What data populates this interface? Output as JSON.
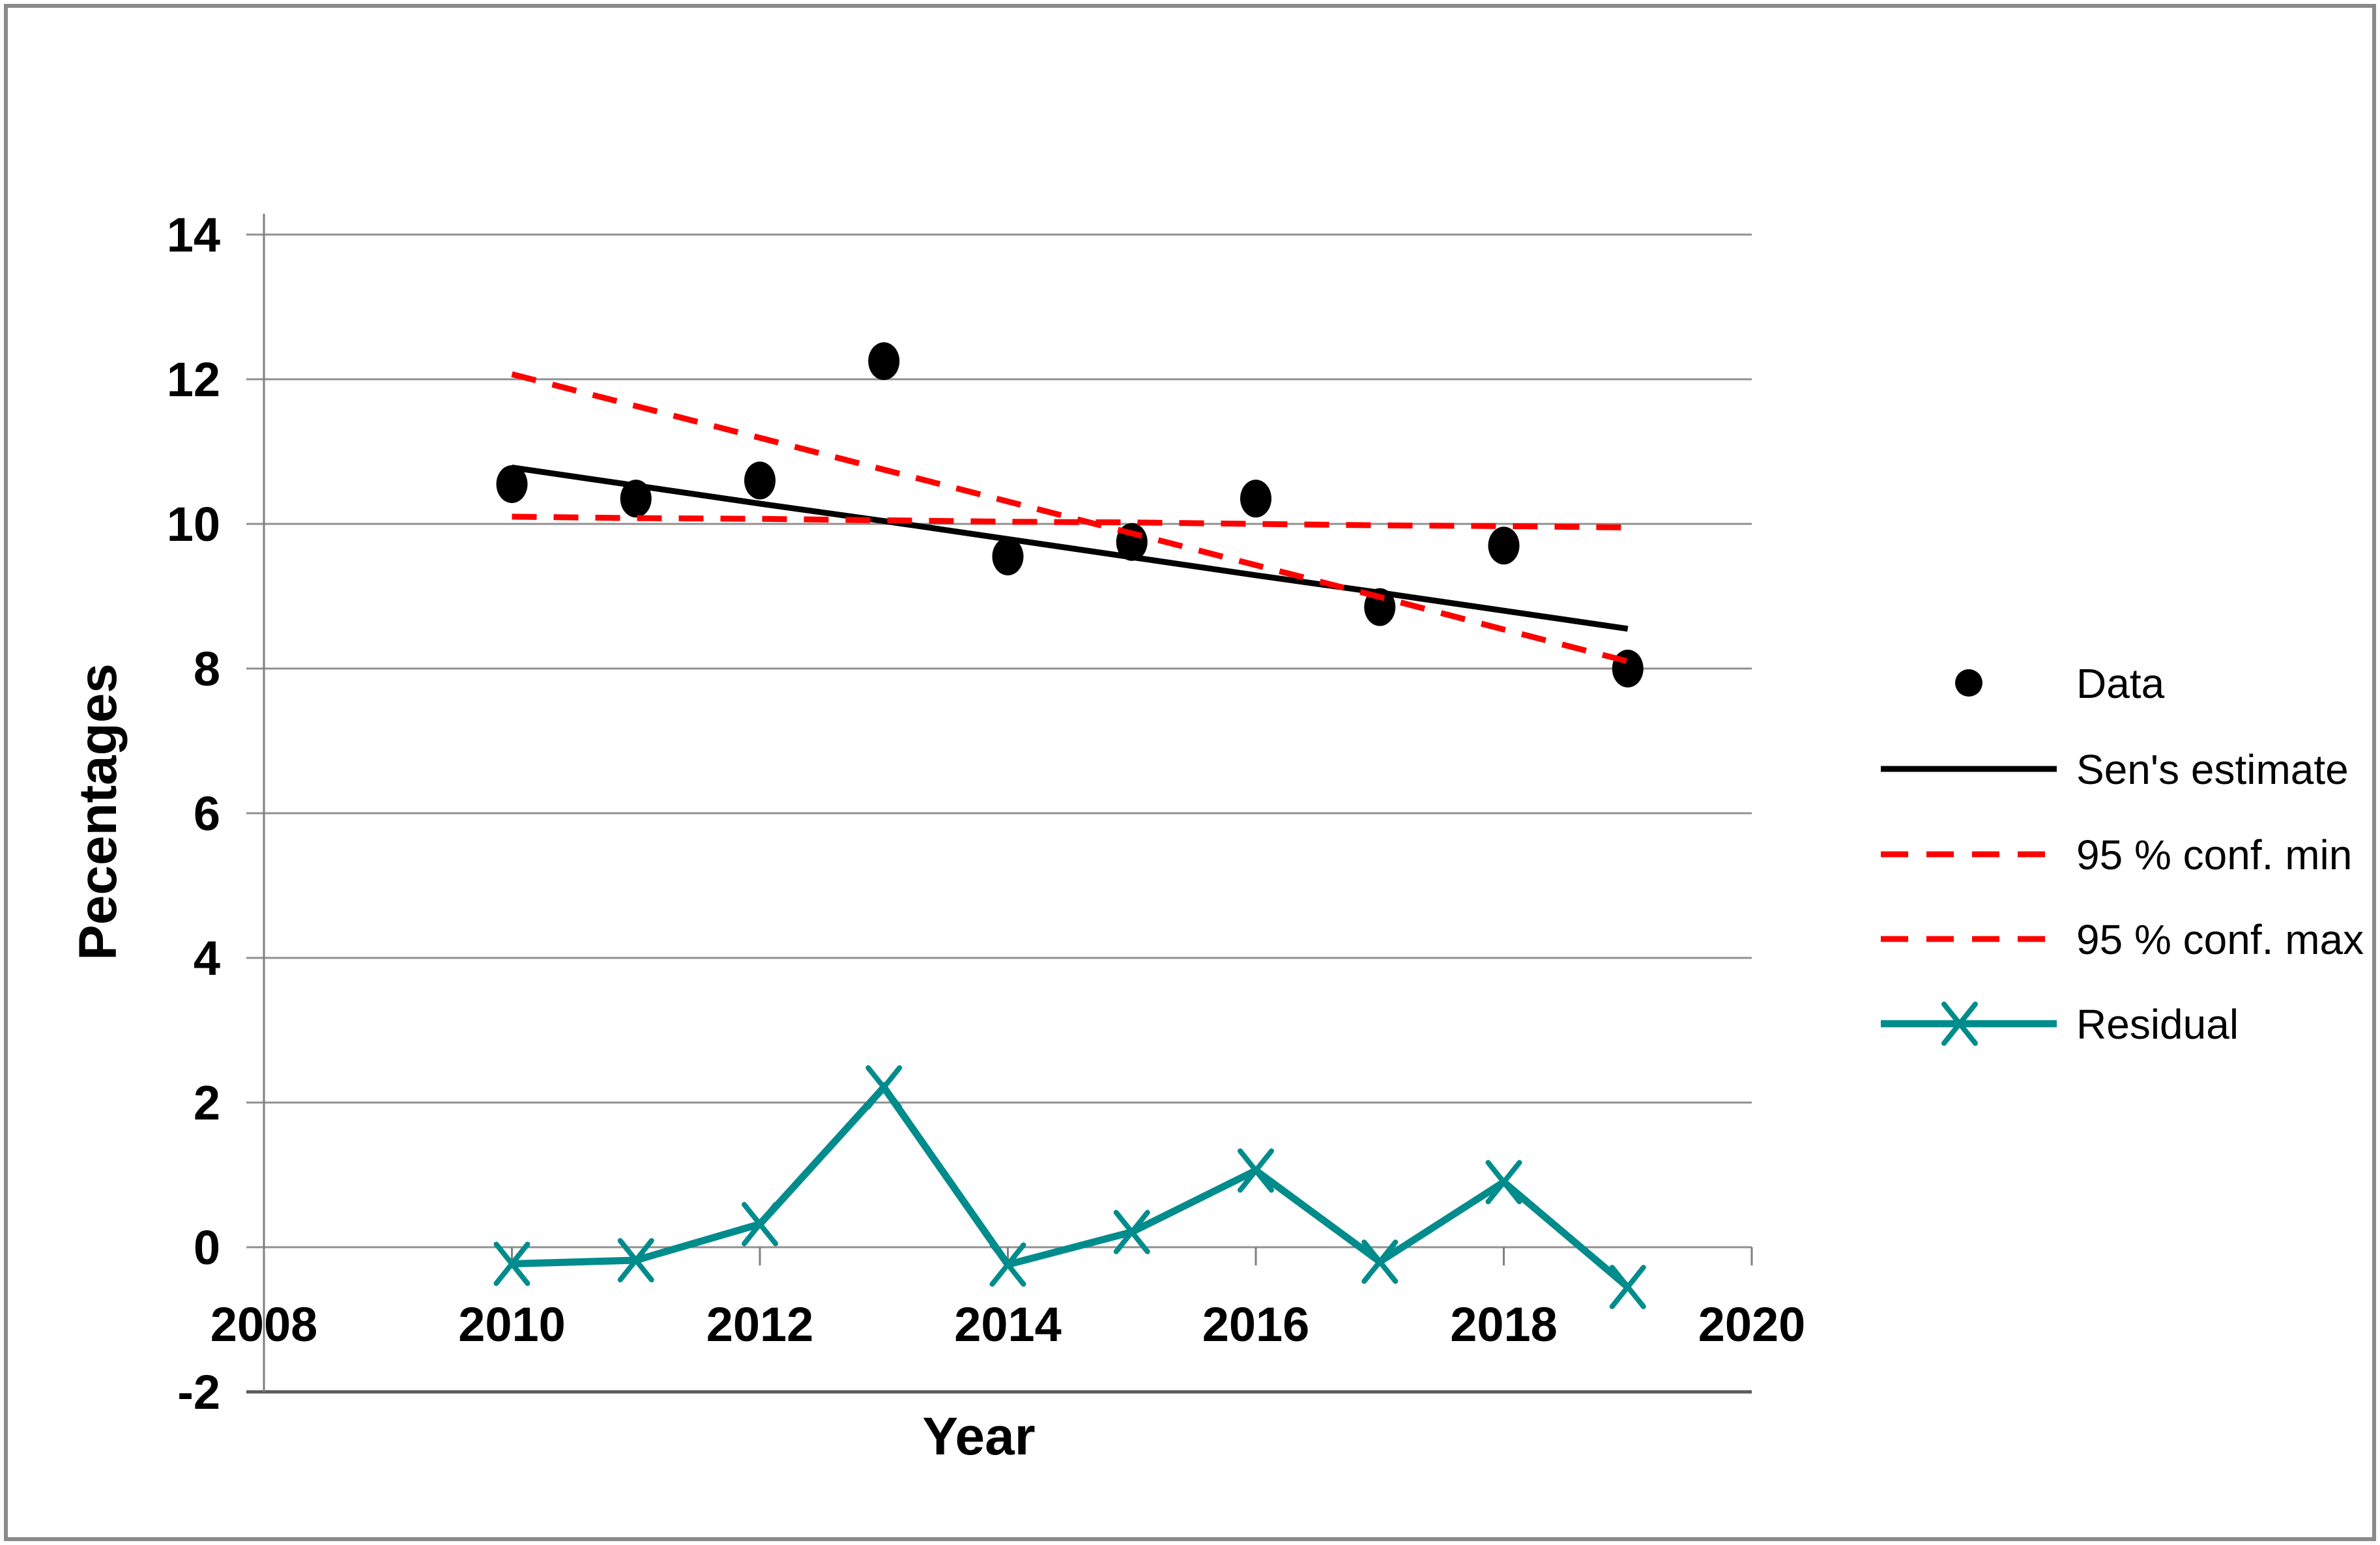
{
  "chart_data": {
    "type": "line",
    "title": "",
    "xlabel": "Year",
    "ylabel": "Pecentages",
    "x": [
      2010,
      2011,
      2012,
      2013,
      2014,
      2015,
      2016,
      2017,
      2018,
      2019
    ],
    "series": [
      {
        "name": "Data",
        "kind": "scatter",
        "marker": "dot",
        "dashed": false,
        "color": "#000000",
        "values": [
          10.55,
          10.35,
          10.6,
          12.25,
          9.55,
          9.75,
          10.35,
          8.85,
          9.7,
          8.0
        ]
      },
      {
        "name": "Sen's estimate",
        "kind": "line",
        "marker": "none",
        "dashed": false,
        "color": "#000000",
        "values": [
          10.78,
          10.53,
          10.28,
          10.04,
          9.79,
          9.54,
          9.29,
          9.05,
          8.8,
          8.55
        ]
      },
      {
        "name": "95 % conf. min",
        "kind": "line",
        "marker": "none",
        "dashed": true,
        "color": "#ff0000",
        "values": [
          10.1,
          10.08,
          10.07,
          10.05,
          10.03,
          10.02,
          10.0,
          9.98,
          9.97,
          9.95
        ]
      },
      {
        "name": "95 % conf. max",
        "kind": "line",
        "marker": "none",
        "dashed": true,
        "color": "#ff0000",
        "values": [
          12.07,
          11.63,
          11.19,
          10.75,
          10.31,
          9.87,
          9.43,
          8.99,
          8.54,
          8.1
        ]
      },
      {
        "name": "Residual",
        "kind": "line",
        "marker": "x",
        "dashed": false,
        "color": "#008c8c",
        "values": [
          -0.23,
          -0.18,
          0.32,
          2.21,
          -0.24,
          0.21,
          1.06,
          -0.2,
          0.9,
          -0.55
        ]
      }
    ],
    "xlim": [
      2008,
      2020
    ],
    "ylim": [
      -2,
      14
    ],
    "xticks": [
      2008,
      2010,
      2012,
      2014,
      2016,
      2018,
      2020
    ],
    "yticks": [
      14,
      12,
      10,
      8,
      6,
      4,
      2,
      0,
      -2
    ],
    "grid": true,
    "legend_position": "right"
  },
  "colors": {
    "background": "#ffffff",
    "figure_border": "#8a8a8a",
    "gridline": "#909090",
    "axis_line": "#7f7f7f",
    "bottom_axis": "#595959",
    "confidence": "#ff0000",
    "residual": "#008c8c",
    "text": "#000000"
  }
}
